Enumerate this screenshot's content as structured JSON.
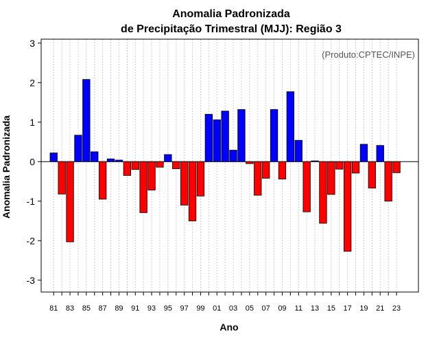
{
  "chart_data": {
    "type": "bar",
    "title_line1": "Anomalia Padronizada",
    "title_line2": "de Precipitação Trimestral (MJJ): Região 3",
    "xlabel": "Ano",
    "ylabel": "Anomalia Padronizada",
    "credit": "(Produto:CPTEC/INPE)",
    "ylim": [
      -3.3,
      3.1
    ],
    "yticks": [
      -3,
      -2,
      -1,
      0,
      1,
      2,
      3
    ],
    "yticks_labels": [
      "-3",
      "-2",
      "-1",
      "0",
      "1",
      "2",
      "3"
    ],
    "x": [
      1981,
      1982,
      1983,
      1984,
      1985,
      1986,
      1987,
      1988,
      1989,
      1990,
      1991,
      1992,
      1993,
      1994,
      1995,
      1996,
      1997,
      1998,
      1999,
      2000,
      2001,
      2002,
      2003,
      2004,
      2005,
      2006,
      2007,
      2008,
      2009,
      2010,
      2011,
      2012,
      2013,
      2014,
      2015,
      2016,
      2017,
      2018,
      2019,
      2020,
      2021,
      2022,
      2023
    ],
    "values": [
      0.22,
      -0.82,
      -2.03,
      0.67,
      2.08,
      0.25,
      -0.95,
      0.07,
      0.04,
      -0.35,
      -0.2,
      -1.29,
      -0.72,
      -0.14,
      0.18,
      -0.18,
      -1.1,
      -1.5,
      -0.87,
      1.2,
      1.06,
      1.28,
      0.29,
      1.32,
      -0.05,
      -0.85,
      -0.42,
      1.32,
      -0.44,
      1.77,
      0.54,
      -1.27,
      0.02,
      -1.56,
      -0.83,
      -0.19,
      -2.27,
      -0.29,
      0.44,
      -0.67,
      0.41,
      -1.0,
      -0.28
    ],
    "xtick_labels": [
      "81",
      "83",
      "85",
      "87",
      "89",
      "91",
      "93",
      "95",
      "97",
      "99",
      "01",
      "03",
      "05",
      "07",
      "09",
      "11",
      "13",
      "15",
      "17",
      "19",
      "21",
      "23"
    ],
    "colors": {
      "positive": "#0000ff",
      "negative": "#ff0000",
      "grid": "#cccccc",
      "credit": "#555555"
    }
  }
}
